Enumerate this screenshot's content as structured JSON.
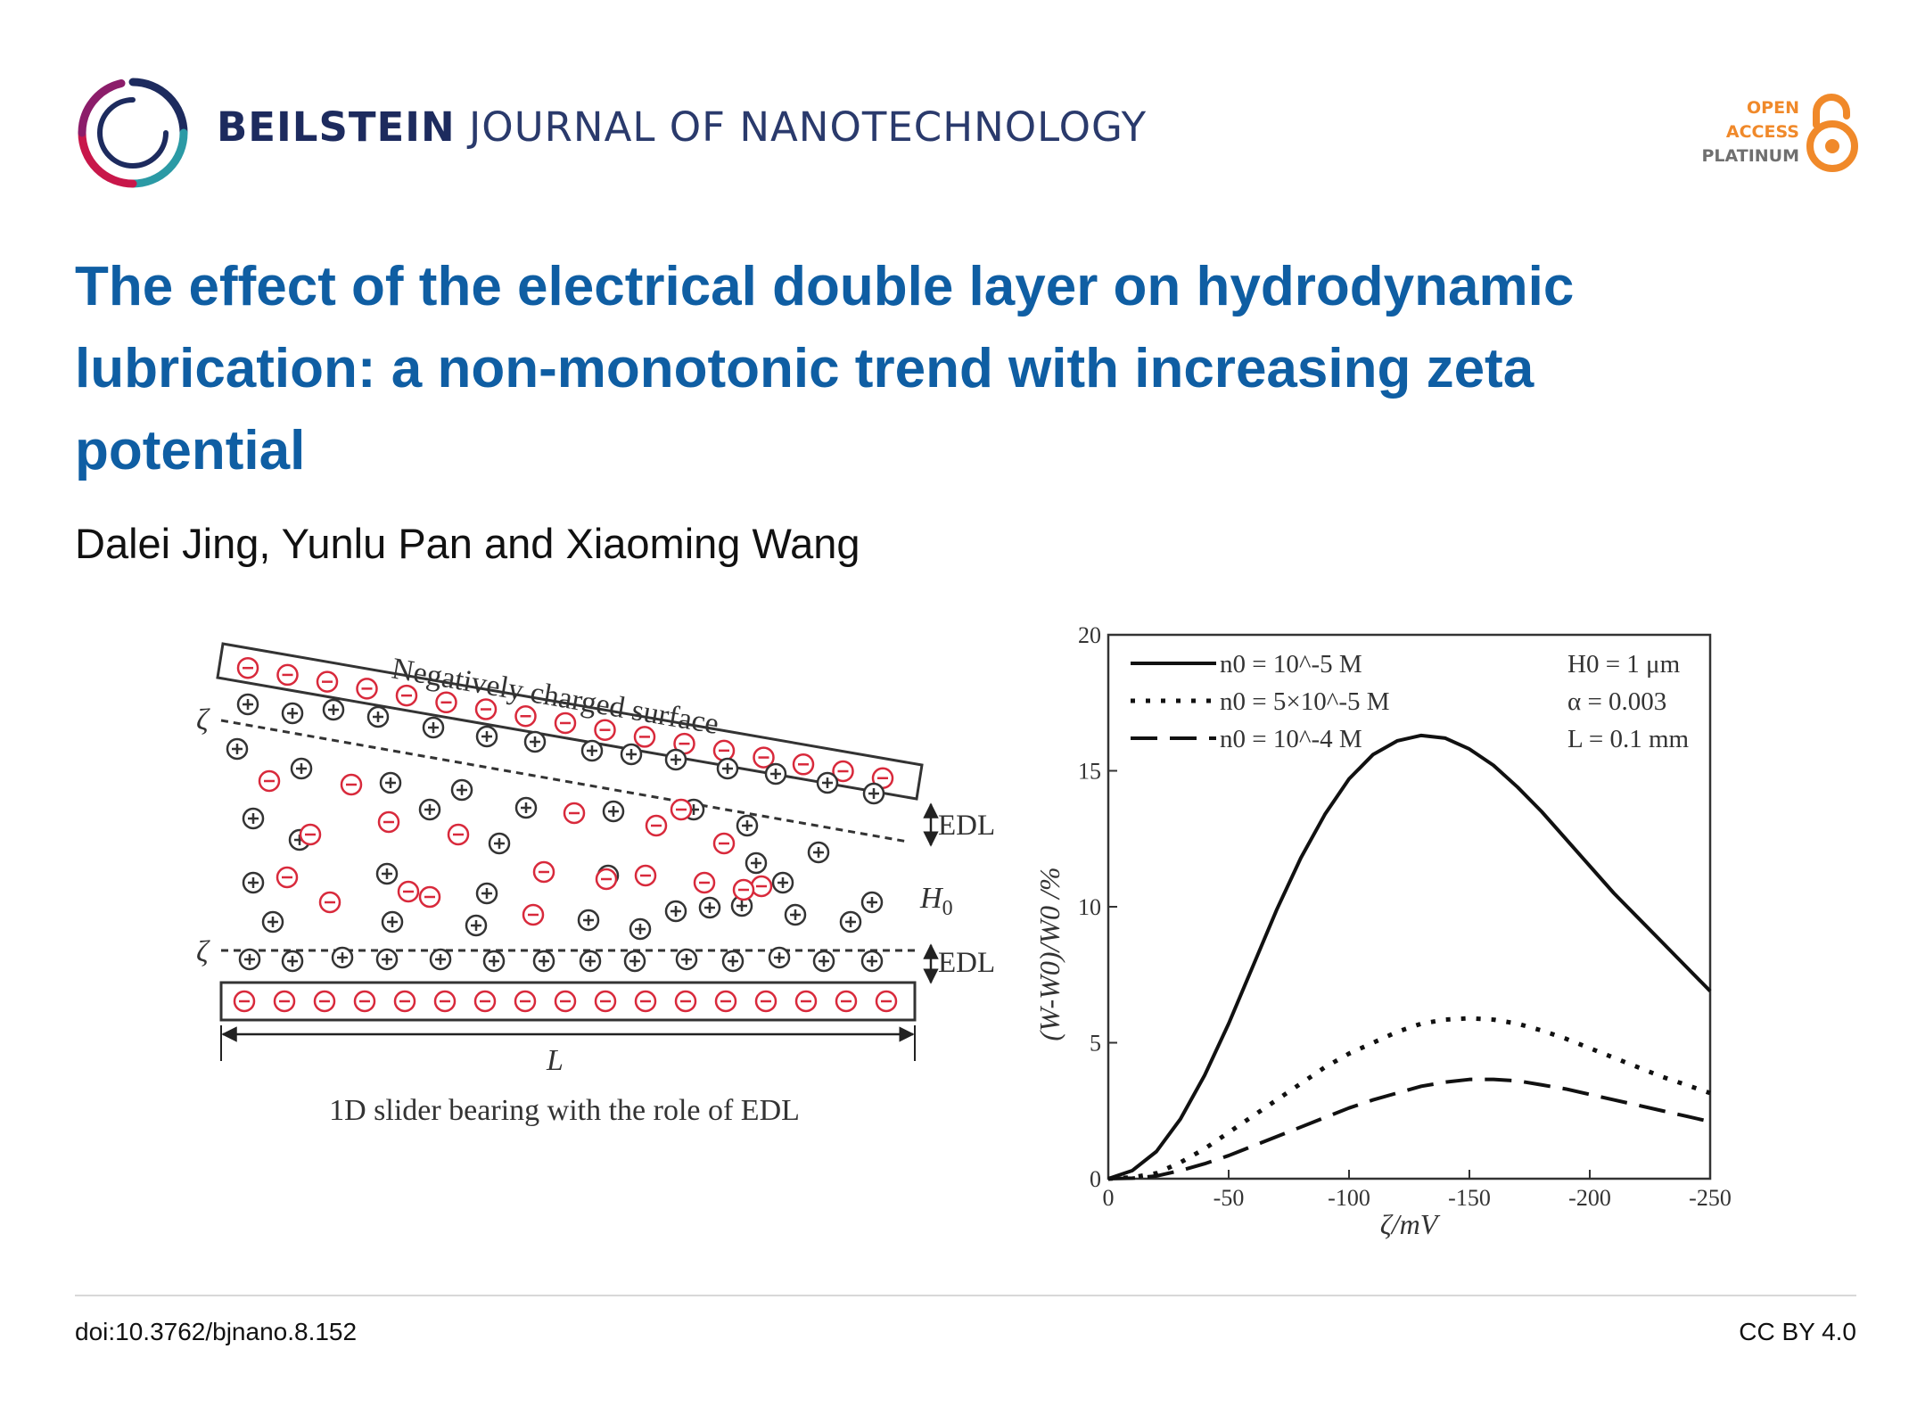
{
  "journal": {
    "name_bold": "BEILSTEIN",
    "name_rest": "JOURNAL OF NANOTECHNOLOGY"
  },
  "open_access": {
    "line1": "OPEN",
    "line2": "ACCESS",
    "line3": "PLATINUM"
  },
  "title": "The effect of the electrical double layer on hydrodynamic lubrication: a non-monotonic trend with increasing zeta potential",
  "authors": "Dalei Jing, Yunlu Pan and Xiaoming Wang",
  "schematic": {
    "top_label": "Negatively charged surface",
    "zeta_top": "ζ",
    "zeta_bottom": "ζ",
    "edl_top": "EDL",
    "edl_bottom": "EDL",
    "h0": "H",
    "h0_sub": "0",
    "length": "L",
    "caption": "1D slider bearing with the role of EDL"
  },
  "chart_data": {
    "type": "line",
    "xlabel": "ζ/mV",
    "ylabel": "(W-W0)/W0 /%",
    "xlim": [
      0,
      -250
    ],
    "ylim": [
      0,
      20
    ],
    "x_ticks": [
      "0",
      "-50",
      "-100",
      "-150",
      "-200",
      "-250"
    ],
    "y_ticks": [
      "0",
      "5",
      "10",
      "15",
      "20"
    ],
    "legend": [
      "n0 = 10^-5 M",
      "n0 = 5×10^-5 M",
      "n0 = 10^-4 M"
    ],
    "annotations": [
      "H0 = 1 μm",
      "α = 0.003",
      "L = 0.1 mm"
    ],
    "x": [
      0,
      -10,
      -20,
      -30,
      -40,
      -50,
      -60,
      -70,
      -80,
      -90,
      -100,
      -110,
      -120,
      -130,
      -140,
      -150,
      -160,
      -170,
      -180,
      -190,
      -200,
      -210,
      -220,
      -230,
      -240,
      -250
    ],
    "series": [
      {
        "name": "n0 = 10^-5 M",
        "style": "solid",
        "values": [
          0,
          0.3,
          1.0,
          2.2,
          3.8,
          5.7,
          7.8,
          9.9,
          11.8,
          13.4,
          14.7,
          15.6,
          16.1,
          16.3,
          16.2,
          15.8,
          15.2,
          14.4,
          13.5,
          12.5,
          11.5,
          10.5,
          9.6,
          8.7,
          7.8,
          6.9
        ]
      },
      {
        "name": "n0 = 5×10^-5 M",
        "style": "dotted",
        "values": [
          0,
          0.05,
          0.2,
          0.6,
          1.1,
          1.7,
          2.3,
          2.9,
          3.5,
          4.1,
          4.6,
          5.0,
          5.4,
          5.7,
          5.85,
          5.9,
          5.85,
          5.7,
          5.45,
          5.15,
          4.8,
          4.45,
          4.1,
          3.75,
          3.45,
          3.15
        ]
      },
      {
        "name": "n0 = 10^-4 M",
        "style": "dashed",
        "values": [
          0,
          0.02,
          0.1,
          0.3,
          0.55,
          0.85,
          1.2,
          1.55,
          1.9,
          2.25,
          2.6,
          2.9,
          3.15,
          3.4,
          3.55,
          3.65,
          3.65,
          3.6,
          3.45,
          3.3,
          3.1,
          2.9,
          2.7,
          2.5,
          2.3,
          2.1
        ]
      }
    ]
  },
  "footer": {
    "doi": "doi:10.3762/bjnano.8.152",
    "license": "CC BY 4.0"
  },
  "colors": {
    "title": "#0f5ea3",
    "journal": "#1d2b5e",
    "accent_orange": "#f0892a",
    "anion_red": "#d8293b"
  }
}
